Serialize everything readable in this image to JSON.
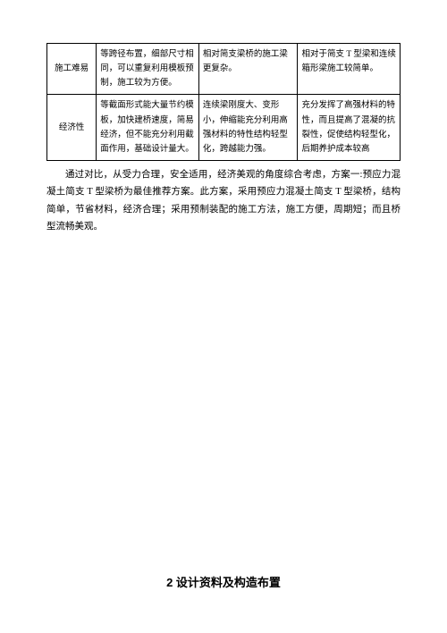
{
  "table": {
    "columns": {
      "col1_width": "14%",
      "col2_width": "29%",
      "col3_width": "28%",
      "col4_width": "29%"
    },
    "rows": [
      {
        "label": "施工难易",
        "c2": "等跨径布置，细部尺寸相同，可以重复利用模板预制，施工较为方便。",
        "c3": "相对简支梁桥的施工梁更复杂。",
        "c4": "相对于简支 T 型梁和连续箱形梁施工较简单。"
      },
      {
        "label": "经济性",
        "c2": "等截面形式能大量节约模板，加快建桥速度，简易经济，但不能充分利用截面作用，基础设计量大。",
        "c3": "连续梁刚度大、变形小，伸缩能充分利用高强材料的特性结构轻型化，跨越能力强。",
        "c4": "充分发挥了高强材料的特性，而且提高了混凝的抗裂性，促使结构轻型化，后期养护成本较高"
      }
    ]
  },
  "paragraph": "通过对比，从受力合理，安全适用，经济美观的角度综合考虑，方案一:预应力混凝土简支 T 型梁桥为最佳推荐方案。此方案，采用预应力混凝土简支 T 型梁桥，结构简单，节省材料，经济合理；采用预制装配的施工方法，施工方便，周期短；而且桥型流畅美观。",
  "section_heading": "2 设计资料及构造布置",
  "style": {
    "page_bg": "#ffffff",
    "border_color": "#000000",
    "body_font_size": 10.5,
    "table_font_size": 9.5,
    "heading_font_size": 13,
    "line_height": 1.85
  }
}
